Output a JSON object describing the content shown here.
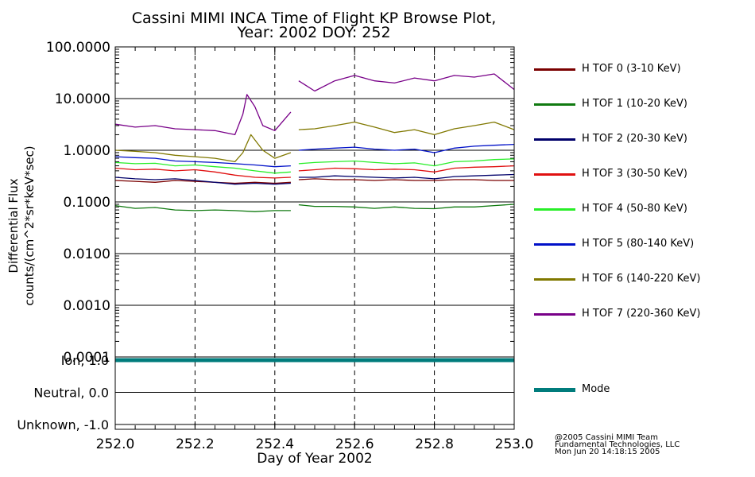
{
  "title": {
    "line1": "Cassini MIMI INCA Time of Flight KP Browse Plot,",
    "line2": "Year: 2002 DOY: 252"
  },
  "credits": {
    "line1": "@2005 Cassini MIMI Team",
    "line2": "Fundamental Technologies, LLC",
    "line3": "Mon Jun 20 14:18:15 2005"
  },
  "colors": {
    "H TOF 0": "#7a0000",
    "H TOF 1": "#107a10",
    "H TOF 2": "#00006a",
    "H TOF 3": "#e01010",
    "H TOF 4": "#28ee28",
    "H TOF 5": "#0010c8",
    "H TOF 6": "#807800",
    "H TOF 7": "#780088",
    "Mode": "#007c7c"
  },
  "chart_data": [
    {
      "type": "line",
      "ylabel": [
        "Differential Flux",
        "counts/(cm^2*sr*keV*sec)"
      ],
      "yscale": "log",
      "ylim": [
        0.0001,
        100
      ],
      "yticks": [
        100,
        10,
        1,
        0.1,
        0.01,
        0.001,
        0.0001
      ],
      "ytick_labels": [
        "100.0000",
        "10.0000",
        "1.0000",
        "0.1000",
        "0.0100",
        "0.0010",
        "0.0001"
      ],
      "xlim": [
        252.0,
        253.0
      ],
      "dashed_vlines": [
        252.2,
        252.4,
        252.6,
        252.8
      ],
      "grid": "horizontal lines at each decade",
      "data_gap": [
        252.445,
        252.455
      ],
      "series": [
        {
          "name": "H TOF 0 (3-10 KeV)",
          "x": [
            252.0,
            252.05,
            252.1,
            252.15,
            252.2,
            252.25,
            252.3,
            252.35,
            252.4,
            252.44,
            252.46,
            252.5,
            252.55,
            252.6,
            252.65,
            252.7,
            252.75,
            252.8,
            252.85,
            252.9,
            252.95,
            253.0
          ],
          "values": [
            0.26,
            0.25,
            0.24,
            0.26,
            0.25,
            0.24,
            0.23,
            0.24,
            0.23,
            0.24,
            0.27,
            0.28,
            0.27,
            0.27,
            0.26,
            0.27,
            0.26,
            0.26,
            0.27,
            0.27,
            0.26,
            0.26
          ]
        },
        {
          "name": "H TOF 1 (10-20 KeV)",
          "x": [
            252.0,
            252.05,
            252.1,
            252.15,
            252.2,
            252.25,
            252.3,
            252.35,
            252.4,
            252.44,
            252.46,
            252.5,
            252.55,
            252.6,
            252.65,
            252.7,
            252.75,
            252.8,
            252.85,
            252.9,
            252.95,
            253.0
          ],
          "values": [
            0.085,
            0.075,
            0.078,
            0.07,
            0.068,
            0.07,
            0.068,
            0.065,
            0.068,
            0.068,
            0.088,
            0.082,
            0.082,
            0.08,
            0.075,
            0.08,
            0.075,
            0.074,
            0.08,
            0.08,
            0.085,
            0.09
          ]
        },
        {
          "name": "H TOF 2 (20-30 KeV)",
          "x": [
            252.0,
            252.05,
            252.1,
            252.15,
            252.2,
            252.25,
            252.3,
            252.35,
            252.4,
            252.44,
            252.46,
            252.5,
            252.55,
            252.6,
            252.65,
            252.7,
            252.75,
            252.8,
            252.85,
            252.9,
            252.95,
            253.0
          ],
          "values": [
            0.3,
            0.28,
            0.27,
            0.28,
            0.26,
            0.24,
            0.22,
            0.23,
            0.22,
            0.23,
            0.3,
            0.3,
            0.32,
            0.31,
            0.3,
            0.29,
            0.3,
            0.28,
            0.31,
            0.32,
            0.33,
            0.34
          ]
        },
        {
          "name": "H TOF 3 (30-50 KeV)",
          "x": [
            252.0,
            252.05,
            252.1,
            252.15,
            252.2,
            252.25,
            252.3,
            252.35,
            252.4,
            252.44,
            252.46,
            252.5,
            252.55,
            252.6,
            252.65,
            252.7,
            252.75,
            252.8,
            252.85,
            252.9,
            252.95,
            253.0
          ],
          "values": [
            0.45,
            0.42,
            0.43,
            0.4,
            0.42,
            0.38,
            0.33,
            0.3,
            0.29,
            0.3,
            0.4,
            0.42,
            0.45,
            0.44,
            0.42,
            0.43,
            0.42,
            0.38,
            0.45,
            0.47,
            0.48,
            0.5
          ]
        },
        {
          "name": "H TOF 4 (50-80 KeV)",
          "x": [
            252.0,
            252.05,
            252.1,
            252.15,
            252.2,
            252.25,
            252.3,
            252.35,
            252.4,
            252.44,
            252.46,
            252.5,
            252.55,
            252.6,
            252.65,
            252.7,
            252.75,
            252.8,
            252.85,
            252.9,
            252.95,
            253.0
          ],
          "values": [
            0.58,
            0.55,
            0.56,
            0.5,
            0.52,
            0.48,
            0.45,
            0.4,
            0.36,
            0.38,
            0.55,
            0.58,
            0.6,
            0.62,
            0.58,
            0.55,
            0.57,
            0.5,
            0.6,
            0.62,
            0.66,
            0.68
          ]
        },
        {
          "name": "H TOF 5 (80-140 KeV)",
          "x": [
            252.0,
            252.05,
            252.1,
            252.15,
            252.2,
            252.25,
            252.3,
            252.35,
            252.4,
            252.44,
            252.46,
            252.5,
            252.55,
            252.6,
            252.65,
            252.7,
            252.75,
            252.8,
            252.85,
            252.9,
            252.95,
            253.0
          ],
          "values": [
            0.75,
            0.72,
            0.7,
            0.62,
            0.6,
            0.58,
            0.55,
            0.52,
            0.48,
            0.5,
            1.0,
            1.05,
            1.1,
            1.15,
            1.05,
            1.0,
            1.05,
            0.9,
            1.1,
            1.2,
            1.25,
            1.3
          ]
        },
        {
          "name": "H TOF 6 (140-220 KeV)",
          "x": [
            252.0,
            252.05,
            252.1,
            252.15,
            252.2,
            252.25,
            252.3,
            252.32,
            252.34,
            252.37,
            252.4,
            252.44,
            252.46,
            252.5,
            252.55,
            252.6,
            252.65,
            252.7,
            252.75,
            252.8,
            252.85,
            252.9,
            252.95,
            253.0
          ],
          "values": [
            1.0,
            0.95,
            0.9,
            0.8,
            0.75,
            0.7,
            0.6,
            0.9,
            2.0,
            1.0,
            0.7,
            0.9,
            2.5,
            2.6,
            3.0,
            3.5,
            2.8,
            2.2,
            2.5,
            2.0,
            2.6,
            3.0,
            3.5,
            2.5
          ]
        },
        {
          "name": "H TOF 7 (220-360 KeV)",
          "x": [
            252.0,
            252.05,
            252.1,
            252.15,
            252.2,
            252.25,
            252.3,
            252.32,
            252.33,
            252.35,
            252.37,
            252.4,
            252.44,
            252.46,
            252.5,
            252.55,
            252.6,
            252.65,
            252.7,
            252.75,
            252.8,
            252.85,
            252.9,
            252.95,
            253.0
          ],
          "values": [
            3.2,
            2.8,
            3.0,
            2.6,
            2.5,
            2.4,
            2.0,
            5.0,
            12.0,
            7.0,
            3.0,
            2.4,
            5.5,
            22.0,
            14.0,
            22.0,
            28.0,
            22.0,
            20.0,
            25.0,
            22.0,
            28.0,
            26.0,
            30.0,
            15.0
          ]
        }
      ]
    },
    {
      "type": "line",
      "ytick_labels": [
        "Ion, 1.0",
        "Neutral, 0.0",
        "Unknown, -1.0"
      ],
      "yticks": [
        1.0,
        0.0,
        -1.0
      ],
      "ylim": [
        -1.15,
        1.1
      ],
      "xlim": [
        252.0,
        253.0
      ],
      "xlabel": "Day of Year 2002",
      "xtick_labels": [
        "252.0",
        "252.2",
        "252.4",
        "252.6",
        "252.8",
        "253.0"
      ],
      "xticks": [
        252.0,
        252.2,
        252.4,
        252.6,
        252.8,
        253.0
      ],
      "series": [
        {
          "name": "Mode",
          "x": [
            252.0,
            253.0
          ],
          "values": [
            1.0,
            1.0
          ]
        }
      ]
    }
  ],
  "legend": [
    {
      "key": "H TOF 0",
      "label": "H TOF 0 (3-10 KeV)"
    },
    {
      "key": "H TOF 1",
      "label": "H TOF 1 (10-20 KeV)"
    },
    {
      "key": "H TOF 2",
      "label": "H TOF 2 (20-30 KeV)"
    },
    {
      "key": "H TOF 3",
      "label": "H TOF 3 (30-50 KeV)"
    },
    {
      "key": "H TOF 4",
      "label": "H TOF 4 (50-80 KeV)"
    },
    {
      "key": "H TOF 5",
      "label": "H TOF 5 (80-140 KeV)"
    },
    {
      "key": "H TOF 6",
      "label": "H TOF 6 (140-220 KeV)"
    },
    {
      "key": "H TOF 7",
      "label": "H TOF 7 (220-360 KeV)"
    },
    {
      "key": "Mode",
      "label": "Mode"
    }
  ]
}
